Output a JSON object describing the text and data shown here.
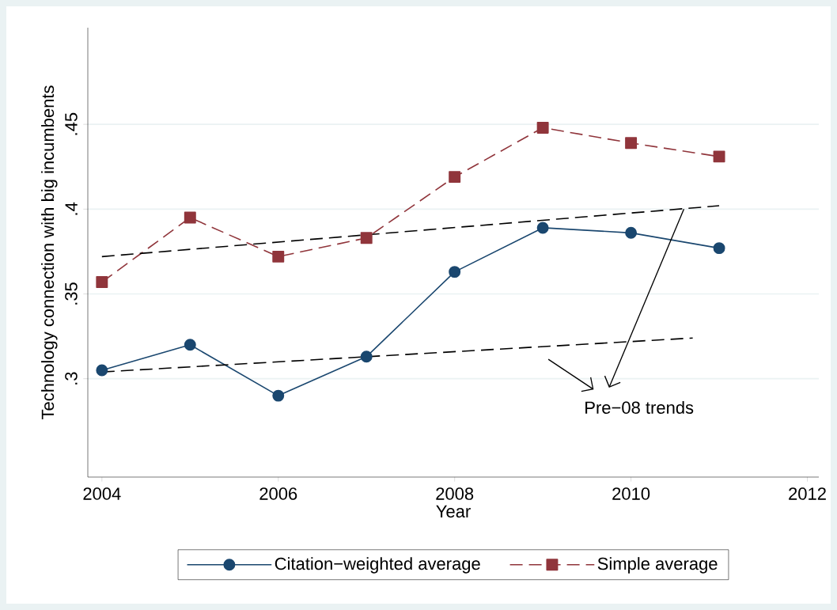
{
  "chart_data": {
    "type": "line",
    "xlabel": "Year",
    "ylabel": "Technology connection with big incumbents",
    "x": [
      2004,
      2005,
      2006,
      2007,
      2008,
      2009,
      2010,
      2011
    ],
    "series": [
      {
        "name": "Citation−weighted average",
        "color": "#1a476f",
        "marker": "circle",
        "line_style": "solid",
        "values": [
          0.305,
          0.32,
          0.29,
          0.313,
          0.363,
          0.389,
          0.386,
          0.377
        ]
      },
      {
        "name": "Simple average",
        "color": "#90353b",
        "marker": "square",
        "line_style": "dashed",
        "values": [
          0.357,
          0.395,
          0.372,
          0.383,
          0.419,
          0.448,
          0.439,
          0.431
        ]
      },
      {
        "type": "line",
        "color": "#000000",
        "marker": "none",
        "line_style": "dashed",
        "x": [
          2004,
          2010.7
        ],
        "values": [
          0.304,
          0.324
        ]
      },
      {
        "type": "line",
        "color": "#000000",
        "marker": "none",
        "line_style": "dashed",
        "x": [
          2004,
          2011
        ],
        "values": [
          0.372,
          0.402
        ]
      }
    ],
    "annotations": [
      {
        "text": "Pre−08 trends",
        "x": 2010.6,
        "y": 0.4
      }
    ],
    "xlim": [
      2003.84,
      2012.13
    ],
    "ylim": [
      0.242,
      0.507
    ],
    "xticks": [
      2004,
      2006,
      2008,
      2010,
      2012
    ],
    "yticks": [
      {
        "value": 0.3,
        "label": ".3"
      },
      {
        "value": 0.35,
        "label": ".35"
      },
      {
        "value": 0.4,
        "label": ".4"
      },
      {
        "value": 0.45,
        "label": ".45"
      }
    ],
    "grid": "y",
    "legend": "bottom"
  }
}
